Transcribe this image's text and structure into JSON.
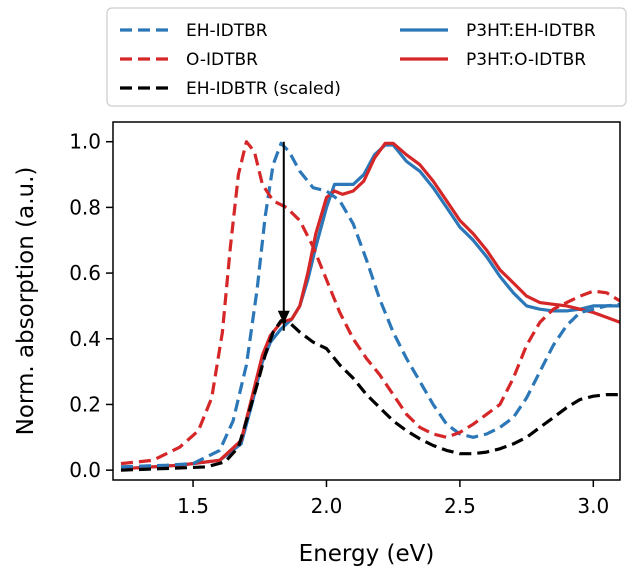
{
  "chart_data": {
    "type": "line",
    "title": "",
    "xlabel": "Energy (eV)",
    "ylabel": "Norm. absorption (a.u.)",
    "xlim": [
      1.2,
      3.1
    ],
    "ylim": [
      -0.03,
      1.06
    ],
    "xticks": [
      1.5,
      2.0,
      2.5,
      3.0
    ],
    "xtick_labels": [
      "1.5",
      "2.0",
      "2.5",
      "3.0"
    ],
    "yticks": [
      0.0,
      0.2,
      0.4,
      0.6,
      0.8,
      1.0
    ],
    "ytick_labels": [
      "0.0",
      "0.2",
      "0.4",
      "0.6",
      "0.8",
      "1.0"
    ],
    "grid": false,
    "legend_position": "top, above plot, two columns",
    "legend": [
      {
        "label": "EH-IDTBR",
        "color": "#2b77b8",
        "style": "dashed"
      },
      {
        "label": "O-IDTBR",
        "color": "#d62728",
        "style": "dashed"
      },
      {
        "label": "EH-IDBTR (scaled)",
        "color": "#000000",
        "style": "dashed"
      },
      {
        "label": "P3HT:EH-IDTBR",
        "color": "#2b77b8",
        "style": "solid"
      },
      {
        "label": "P3HT:O-IDTBR",
        "color": "#d62728",
        "style": "solid"
      }
    ],
    "series": [
      {
        "name": "P3HT:EH-IDTBR",
        "color": "#2b77b8",
        "style": "solid",
        "points": [
          [
            1.25,
            0.005
          ],
          [
            1.45,
            0.015
          ],
          [
            1.6,
            0.03
          ],
          [
            1.68,
            0.08
          ],
          [
            1.72,
            0.2
          ],
          [
            1.76,
            0.33
          ],
          [
            1.79,
            0.39
          ],
          [
            1.83,
            0.43
          ],
          [
            1.87,
            0.46
          ],
          [
            1.9,
            0.5
          ],
          [
            1.93,
            0.58
          ],
          [
            1.96,
            0.68
          ],
          [
            2.0,
            0.8
          ],
          [
            2.03,
            0.87
          ],
          [
            2.06,
            0.87
          ],
          [
            2.1,
            0.87
          ],
          [
            2.14,
            0.9
          ],
          [
            2.18,
            0.96
          ],
          [
            2.22,
            0.99
          ],
          [
            2.25,
            0.99
          ],
          [
            2.3,
            0.94
          ],
          [
            2.35,
            0.91
          ],
          [
            2.4,
            0.86
          ],
          [
            2.45,
            0.8
          ],
          [
            2.5,
            0.74
          ],
          [
            2.55,
            0.7
          ],
          [
            2.6,
            0.65
          ],
          [
            2.65,
            0.59
          ],
          [
            2.7,
            0.54
          ],
          [
            2.75,
            0.5
          ],
          [
            2.8,
            0.49
          ],
          [
            2.85,
            0.485
          ],
          [
            2.9,
            0.485
          ],
          [
            2.95,
            0.49
          ],
          [
            3.0,
            0.5
          ],
          [
            3.05,
            0.5
          ],
          [
            3.1,
            0.5
          ]
        ]
      },
      {
        "name": "P3HT:O-IDTBR",
        "color": "#d62728",
        "style": "solid",
        "points": [
          [
            1.25,
            0.005
          ],
          [
            1.45,
            0.015
          ],
          [
            1.6,
            0.03
          ],
          [
            1.68,
            0.09
          ],
          [
            1.72,
            0.22
          ],
          [
            1.76,
            0.35
          ],
          [
            1.79,
            0.41
          ],
          [
            1.83,
            0.45
          ],
          [
            1.87,
            0.46
          ],
          [
            1.9,
            0.5
          ],
          [
            1.93,
            0.6
          ],
          [
            1.96,
            0.72
          ],
          [
            2.0,
            0.83
          ],
          [
            2.03,
            0.85
          ],
          [
            2.06,
            0.84
          ],
          [
            2.1,
            0.85
          ],
          [
            2.14,
            0.88
          ],
          [
            2.18,
            0.95
          ],
          [
            2.22,
            0.995
          ],
          [
            2.25,
            0.995
          ],
          [
            2.3,
            0.96
          ],
          [
            2.35,
            0.93
          ],
          [
            2.4,
            0.88
          ],
          [
            2.45,
            0.82
          ],
          [
            2.5,
            0.76
          ],
          [
            2.55,
            0.72
          ],
          [
            2.6,
            0.67
          ],
          [
            2.65,
            0.61
          ],
          [
            2.7,
            0.57
          ],
          [
            2.75,
            0.53
          ],
          [
            2.8,
            0.51
          ],
          [
            2.85,
            0.505
          ],
          [
            2.9,
            0.5
          ],
          [
            2.95,
            0.49
          ],
          [
            3.0,
            0.48
          ],
          [
            3.05,
            0.465
          ],
          [
            3.1,
            0.45
          ]
        ]
      },
      {
        "name": "EH-IDTBR",
        "color": "#2b77b8",
        "style": "dashed",
        "points": [
          [
            1.23,
            0.01
          ],
          [
            1.4,
            0.015
          ],
          [
            1.5,
            0.02
          ],
          [
            1.6,
            0.06
          ],
          [
            1.65,
            0.15
          ],
          [
            1.7,
            0.32
          ],
          [
            1.74,
            0.55
          ],
          [
            1.77,
            0.77
          ],
          [
            1.8,
            0.93
          ],
          [
            1.83,
            0.995
          ],
          [
            1.86,
            0.97
          ],
          [
            1.9,
            0.91
          ],
          [
            1.95,
            0.86
          ],
          [
            2.0,
            0.85
          ],
          [
            2.05,
            0.82
          ],
          [
            2.1,
            0.75
          ],
          [
            2.15,
            0.64
          ],
          [
            2.2,
            0.52
          ],
          [
            2.25,
            0.42
          ],
          [
            2.3,
            0.34
          ],
          [
            2.35,
            0.27
          ],
          [
            2.4,
            0.2
          ],
          [
            2.45,
            0.14
          ],
          [
            2.5,
            0.11
          ],
          [
            2.55,
            0.1
          ],
          [
            2.6,
            0.11
          ],
          [
            2.65,
            0.13
          ],
          [
            2.7,
            0.16
          ],
          [
            2.75,
            0.22
          ],
          [
            2.8,
            0.3
          ],
          [
            2.85,
            0.38
          ],
          [
            2.9,
            0.44
          ],
          [
            2.95,
            0.48
          ],
          [
            3.0,
            0.49
          ],
          [
            3.05,
            0.5
          ],
          [
            3.1,
            0.505
          ]
        ]
      },
      {
        "name": "O-IDTBR",
        "color": "#d62728",
        "style": "dashed",
        "points": [
          [
            1.23,
            0.02
          ],
          [
            1.35,
            0.03
          ],
          [
            1.45,
            0.07
          ],
          [
            1.52,
            0.12
          ],
          [
            1.57,
            0.22
          ],
          [
            1.61,
            0.42
          ],
          [
            1.64,
            0.68
          ],
          [
            1.67,
            0.9
          ],
          [
            1.7,
            1.0
          ],
          [
            1.73,
            0.97
          ],
          [
            1.76,
            0.87
          ],
          [
            1.8,
            0.82
          ],
          [
            1.85,
            0.8
          ],
          [
            1.9,
            0.76
          ],
          [
            1.95,
            0.68
          ],
          [
            2.0,
            0.58
          ],
          [
            2.05,
            0.48
          ],
          [
            2.1,
            0.4
          ],
          [
            2.15,
            0.34
          ],
          [
            2.2,
            0.29
          ],
          [
            2.25,
            0.23
          ],
          [
            2.3,
            0.17
          ],
          [
            2.35,
            0.13
          ],
          [
            2.4,
            0.11
          ],
          [
            2.45,
            0.1
          ],
          [
            2.5,
            0.115
          ],
          [
            2.55,
            0.14
          ],
          [
            2.6,
            0.17
          ],
          [
            2.65,
            0.2
          ],
          [
            2.7,
            0.28
          ],
          [
            2.75,
            0.38
          ],
          [
            2.8,
            0.45
          ],
          [
            2.85,
            0.49
          ],
          [
            2.9,
            0.51
          ],
          [
            2.95,
            0.53
          ],
          [
            3.0,
            0.545
          ],
          [
            3.05,
            0.54
          ],
          [
            3.1,
            0.515
          ]
        ]
      },
      {
        "name": "EH-IDBTR (scaled)",
        "color": "#000000",
        "style": "dashed",
        "points": [
          [
            1.23,
            0.0
          ],
          [
            1.4,
            0.005
          ],
          [
            1.55,
            0.01
          ],
          [
            1.62,
            0.025
          ],
          [
            1.67,
            0.07
          ],
          [
            1.7,
            0.15
          ],
          [
            1.74,
            0.26
          ],
          [
            1.77,
            0.35
          ],
          [
            1.8,
            0.42
          ],
          [
            1.83,
            0.455
          ],
          [
            1.86,
            0.45
          ],
          [
            1.9,
            0.42
          ],
          [
            1.95,
            0.39
          ],
          [
            2.0,
            0.37
          ],
          [
            2.05,
            0.32
          ],
          [
            2.1,
            0.28
          ],
          [
            2.15,
            0.23
          ],
          [
            2.2,
            0.19
          ],
          [
            2.25,
            0.15
          ],
          [
            2.3,
            0.12
          ],
          [
            2.35,
            0.095
          ],
          [
            2.4,
            0.075
          ],
          [
            2.45,
            0.06
          ],
          [
            2.5,
            0.05
          ],
          [
            2.55,
            0.05
          ],
          [
            2.6,
            0.055
          ],
          [
            2.65,
            0.065
          ],
          [
            2.7,
            0.08
          ],
          [
            2.75,
            0.1
          ],
          [
            2.8,
            0.13
          ],
          [
            2.85,
            0.16
          ],
          [
            2.9,
            0.19
          ],
          [
            2.95,
            0.215
          ],
          [
            3.0,
            0.225
          ],
          [
            3.05,
            0.23
          ],
          [
            3.1,
            0.23
          ]
        ]
      }
    ],
    "annotations": [
      {
        "type": "arrow",
        "x": 1.84,
        "y_from": 1.0,
        "y_to": 0.455,
        "color": "#000000"
      }
    ]
  }
}
